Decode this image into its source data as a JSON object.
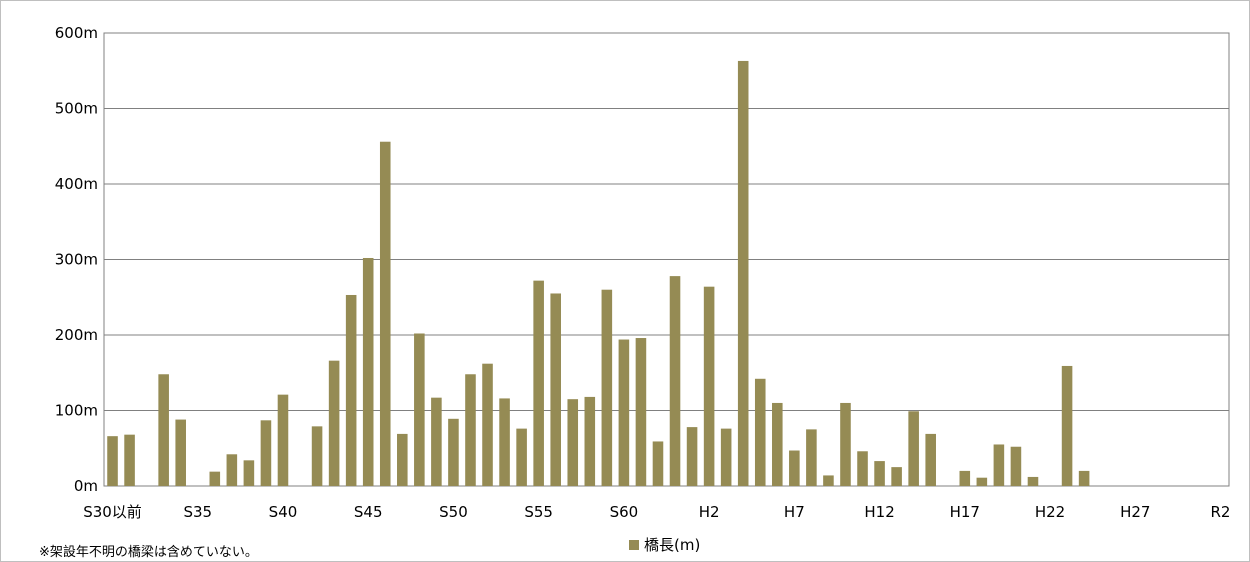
{
  "note": "※架設年不明の橋梁は含めていない。",
  "colors": {
    "bar": "#958b54",
    "grid": "#808080"
  },
  "chart_data": {
    "type": "bar",
    "title": "",
    "xlabel": "",
    "ylabel": "",
    "ylim": [
      0,
      600
    ],
    "yticks": [
      0,
      100,
      200,
      300,
      400,
      500,
      600
    ],
    "ytick_labels": [
      "0m",
      "100m",
      "200m",
      "300m",
      "400m",
      "500m",
      "600m"
    ],
    "grid": "horizontal",
    "legend_position": "bottom-center",
    "categories": [
      "S30以前",
      "S31",
      "S32",
      "S33",
      "S34",
      "S35",
      "S36",
      "S37",
      "S38",
      "S39",
      "S40",
      "S41",
      "S42",
      "S43",
      "S44",
      "S45",
      "S46",
      "S47",
      "S48",
      "S49",
      "S50",
      "S51",
      "S52",
      "S53",
      "S54",
      "S55",
      "S56",
      "S57",
      "S58",
      "S59",
      "S60",
      "S61",
      "S62",
      "S63",
      "H1",
      "H2",
      "H3",
      "H4",
      "H5",
      "H6",
      "H7",
      "H8",
      "H9",
      "H10",
      "H11",
      "H12",
      "H13",
      "H14",
      "H15",
      "H16",
      "H17",
      "H18",
      "H19",
      "H20",
      "H21",
      "H22",
      "H23",
      "H24",
      "H25",
      "H26",
      "H27",
      "H28",
      "H29",
      "H30",
      "R1",
      "R2"
    ],
    "xtick_labels": [
      {
        "index": 0,
        "label": "S30以前"
      },
      {
        "index": 5,
        "label": "S35"
      },
      {
        "index": 10,
        "label": "S40"
      },
      {
        "index": 15,
        "label": "S45"
      },
      {
        "index": 20,
        "label": "S50"
      },
      {
        "index": 25,
        "label": "S55"
      },
      {
        "index": 30,
        "label": "S60"
      },
      {
        "index": 35,
        "label": "H2"
      },
      {
        "index": 40,
        "label": "H7"
      },
      {
        "index": 45,
        "label": "H12"
      },
      {
        "index": 50,
        "label": "H17"
      },
      {
        "index": 55,
        "label": "H22"
      },
      {
        "index": 60,
        "label": "H27"
      },
      {
        "index": 65,
        "label": "R2"
      }
    ],
    "series": [
      {
        "name": "橋長(m)",
        "values": [
          66,
          68,
          0,
          148,
          88,
          0,
          19,
          42,
          34,
          87,
          121,
          0,
          79,
          166,
          253,
          302,
          456,
          69,
          202,
          117,
          89,
          148,
          162,
          116,
          76,
          272,
          255,
          115,
          118,
          260,
          194,
          196,
          59,
          278,
          78,
          264,
          76,
          563,
          142,
          110,
          47,
          75,
          14,
          110,
          46,
          33,
          25,
          99,
          69,
          0,
          20,
          11,
          55,
          52,
          12,
          0,
          159,
          20,
          0,
          0,
          0,
          0,
          0,
          0,
          0,
          0
        ]
      }
    ]
  }
}
